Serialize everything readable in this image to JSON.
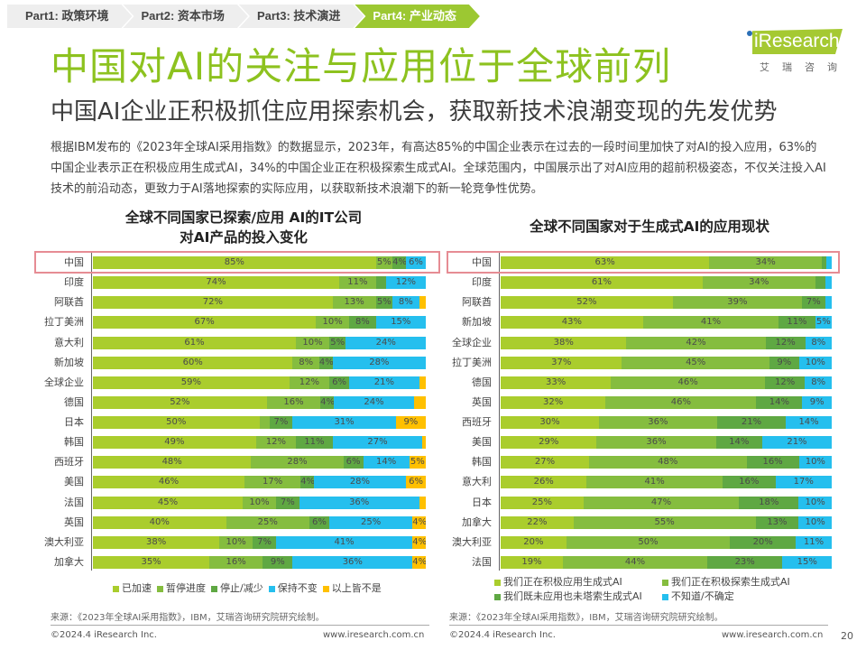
{
  "nav": [
    "Part1: 政策环境",
    "Part2: 资本市场",
    "Part3: 技术演进",
    "Part4: 产业动态"
  ],
  "nav_active": 3,
  "title": "中国对AI的关注与应用位于全球前列",
  "subtitle": "中国AI企业正积极抓住应用探索机会，获取新技术浪潮变现的先发优势",
  "logo": {
    "text": "iResearch",
    "cn": "艾瑞咨询"
  },
  "paragraph": "根据IBM发布的《2023年全球AI采用指数》的数据显示，2023年，有高达85%的中国企业表示在过去的一段时间里加快了对AI的投入应用，63%的中国企业表示正在积极应用生成式AI，34%的中国企业正在积极探索生成式AI。全球范围内，中国展示出了对AI应用的超前积极姿态，不仅关注投入AI技术的前沿动态，更致力于AI落地探索的实际应用，以获取新技术浪潮下的新一轮竞争性优势。",
  "colors": [
    "#aacd2d",
    "#85bd3f",
    "#5fa843",
    "#25bfee",
    "#ffc000"
  ],
  "chart_data": [
    {
      "type": "bar",
      "stacked": true,
      "orientation": "horizontal",
      "title": [
        "全球不同国家已探索/应用 AI的IT公司",
        "对AI产品的投入变化"
      ],
      "categories": [
        "中国",
        "印度",
        "阿联酋",
        "拉丁美洲",
        "意大利",
        "新加坡",
        "全球企业",
        "德国",
        "日本",
        "韩国",
        "西班牙",
        "美国",
        "法国",
        "英国",
        "澳大利亚",
        "加拿大"
      ],
      "series": [
        {
          "name": "已加速",
          "values": [
            85,
            74,
            72,
            67,
            61,
            60,
            59,
            52,
            50,
            49,
            48,
            46,
            45,
            40,
            38,
            35
          ]
        },
        {
          "name": "暂停进度",
          "values": [
            5,
            11,
            13,
            10,
            10,
            8,
            12,
            16,
            3,
            12,
            28,
            17,
            10,
            25,
            10,
            16
          ]
        },
        {
          "name": "停止/减少",
          "values": [
            4,
            3,
            5,
            8,
            5,
            4,
            6,
            4,
            7,
            11,
            6,
            4,
            7,
            6,
            7,
            9
          ]
        },
        {
          "name": "保持不变",
          "values": [
            6,
            12,
            8,
            15,
            24,
            28,
            21,
            24,
            31,
            27,
            14,
            28,
            36,
            25,
            41,
            36
          ]
        },
        {
          "name": "以上皆不是",
          "values": [
            0,
            0,
            2,
            0,
            0,
            0,
            2,
            3.5,
            9,
            1,
            5,
            6,
            2,
            4,
            4,
            4
          ]
        }
      ],
      "highlight": "中国",
      "legend": "bottom",
      "source": "来源：《2023年全球AI采用指数》，IBM，艾瑞咨询研究院研究绘制。"
    },
    {
      "type": "bar",
      "stacked": true,
      "orientation": "horizontal",
      "title": [
        "全球不同国家对于生成式AI的应用现状"
      ],
      "categories": [
        "中国",
        "印度",
        "阿联酋",
        "新加坡",
        "全球企业",
        "拉丁美洲",
        "德国",
        "英国",
        "西班牙",
        "美国",
        "韩国",
        "意大利",
        "日本",
        "加拿大",
        "澳大利亚",
        "法国"
      ],
      "series": [
        {
          "name": "我们正在积极应用生成式AI",
          "values": [
            63,
            61,
            52,
            43,
            38,
            37,
            33,
            32,
            30,
            29,
            27,
            26,
            25,
            22,
            20,
            19
          ]
        },
        {
          "name": "我们正在积极探索生成式AI",
          "values": [
            34,
            34,
            39,
            41,
            42,
            45,
            46,
            46,
            36,
            36,
            48,
            41,
            47,
            55,
            50,
            44
          ]
        },
        {
          "name": "我们既未应用也未塔索生成式AI",
          "values": [
            1.5,
            3,
            7,
            11,
            12,
            9,
            12,
            14,
            21,
            14,
            16,
            16,
            18,
            13,
            20,
            23
          ]
        },
        {
          "name": "不知道/不确定",
          "values": [
            1.5,
            2,
            2,
            5,
            8,
            10,
            8,
            9,
            14,
            21,
            10,
            17,
            10,
            10,
            11,
            15
          ]
        }
      ],
      "highlight": "中国",
      "legend": "bottom",
      "source": "来源：《2023年全球AI采用指数》，IBM，艾瑞咨询研究院研究绘制。"
    }
  ],
  "footer": {
    "copyright": "©2024.4 iResearch Inc.",
    "url": "www.iresearch.com.cn",
    "page": "20"
  }
}
